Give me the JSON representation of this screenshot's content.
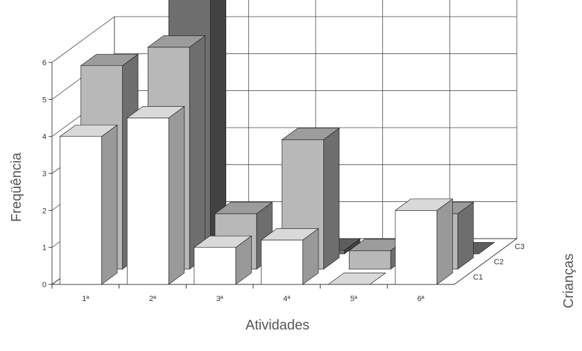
{
  "chart_data": {
    "type": "bar3d",
    "x_label": "Atividades",
    "y_label": "Freqüência",
    "z_label": "Crianças",
    "categories": [
      "1ª",
      "2ª",
      "3ª",
      "4ª",
      "5ª",
      "6ª"
    ],
    "series": [
      {
        "name": "C1",
        "color": "#ffffff",
        "values": [
          4,
          4.5,
          1,
          1.2,
          0,
          2
        ]
      },
      {
        "name": "C2",
        "color": "#b8b8b8",
        "values": [
          5.5,
          6,
          1.5,
          3.5,
          0.5,
          1.5
        ]
      },
      {
        "name": "C3",
        "color": "#6e6e6e",
        "values": [
          0,
          7,
          0,
          0.1,
          0,
          0
        ]
      }
    ],
    "ylim": [
      0,
      6
    ],
    "yticks": [
      0,
      1,
      2,
      3,
      4,
      5,
      6
    ],
    "grid": true
  }
}
